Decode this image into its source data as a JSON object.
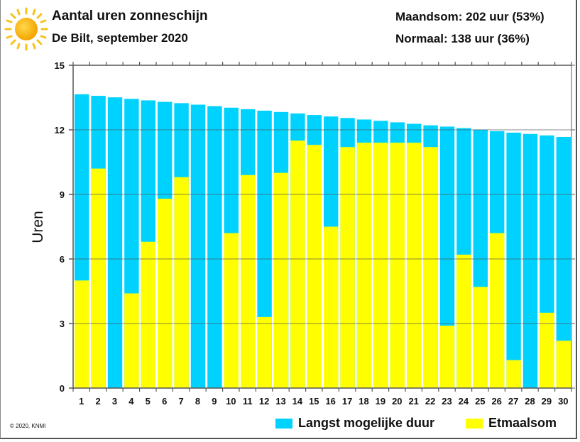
{
  "header": {
    "title": "Aantal uren zonneschijn",
    "subtitle": "De Bilt, september 2020",
    "monthly_sum": "Maandsom: 202 uur (53%)",
    "normal": "Normaal: 138 uur (36%)",
    "icon": "sun-icon"
  },
  "footer": {
    "copyright": "© 2020, KNMI"
  },
  "colors": {
    "max_possible": "#00d2ff",
    "daily_sum": "#ffff00",
    "gridline": "#666666"
  },
  "chart_data": {
    "type": "bar",
    "title": "Aantal uren zonneschijn",
    "subtitle": "De Bilt, september 2020",
    "xlabel": "",
    "ylabel": "Uren",
    "ylim": [
      0,
      15
    ],
    "yticks": [
      0,
      3,
      6,
      9,
      12,
      15
    ],
    "grid": true,
    "legend_position": "bottom",
    "categories": [
      "1",
      "2",
      "3",
      "4",
      "5",
      "6",
      "7",
      "8",
      "9",
      "10",
      "11",
      "12",
      "13",
      "14",
      "15",
      "16",
      "17",
      "18",
      "19",
      "20",
      "21",
      "22",
      "23",
      "24",
      "25",
      "26",
      "27",
      "28",
      "29",
      "30"
    ],
    "series": [
      {
        "name": "Langst mogelijke duur",
        "color": "#00d2ff",
        "values": [
          13.65,
          13.58,
          13.51,
          13.44,
          13.37,
          13.3,
          13.24,
          13.17,
          13.1,
          13.03,
          12.96,
          12.89,
          12.83,
          12.76,
          12.69,
          12.62,
          12.55,
          12.48,
          12.42,
          12.35,
          12.28,
          12.21,
          12.15,
          12.08,
          12.01,
          11.94,
          11.87,
          11.81,
          11.74,
          11.67
        ]
      },
      {
        "name": "Etmaalsom",
        "color": "#ffff00",
        "values": [
          5.0,
          10.2,
          0.0,
          4.4,
          6.8,
          8.8,
          9.8,
          0.0,
          0.0,
          7.2,
          9.9,
          3.3,
          10.0,
          11.5,
          11.3,
          7.5,
          11.2,
          11.4,
          11.4,
          11.4,
          11.4,
          11.2,
          2.9,
          6.2,
          4.7,
          7.2,
          1.3,
          0.0,
          3.5,
          2.2
        ]
      }
    ],
    "annotations": [
      "Maandsom: 202 uur (53%)",
      "Normaal: 138 uur (36%)"
    ]
  }
}
